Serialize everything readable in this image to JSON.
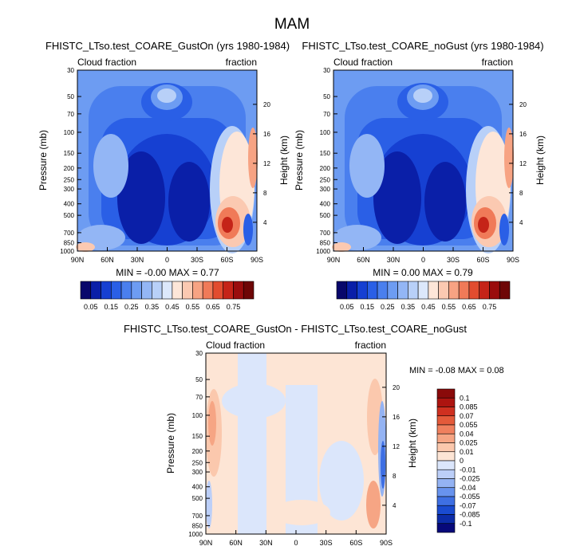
{
  "figure": {
    "title": "MAM"
  },
  "colors": {
    "seq_scale": [
      "#08076b",
      "#0a1fa8",
      "#1640d2",
      "#2a5fe6",
      "#4a7fee",
      "#6d9cf2",
      "#93b6f5",
      "#b8d0f8",
      "#dce8fb",
      "#fde6d8",
      "#fbc9b1",
      "#f7a383",
      "#f07a58",
      "#e24c2f",
      "#c52418",
      "#9a0d0d",
      "#6e0606"
    ],
    "diff_scale": [
      "#07097a",
      "#0c2ca8",
      "#1a4bd0",
      "#3e6fe3",
      "#6893ee",
      "#94b3f3",
      "#bccff8",
      "#dbe6fb",
      "#fde5d5",
      "#fbc8ad",
      "#f6a584",
      "#f0805e",
      "#e45a3a",
      "#cf3020",
      "#ad1410",
      "#8a0a0a"
    ]
  },
  "chart_data": [
    {
      "type": "heatmap",
      "title": "FHISTC_LTso.test_COARE_GustOn (yrs 1980-1984)",
      "left_label": "Cloud fraction",
      "right_label": "fraction",
      "ylabel": "Pressure (mb)",
      "ylabel_right": "Height (km)",
      "x_ticks": [
        "90N",
        "60N",
        "30N",
        "0",
        "30S",
        "60S",
        "90S"
      ],
      "y_ticks": [
        "30",
        "50",
        "70",
        "100",
        "150",
        "200",
        "250",
        "300",
        "400",
        "500",
        "700",
        "850",
        "1000"
      ],
      "y2_ticks": [
        "20",
        "16",
        "12",
        "8",
        "4"
      ],
      "stats": "MIN =  -0.00   MAX =  0.77",
      "colorbar_labels": [
        "0.05",
        "0.15",
        "0.25",
        "0.35",
        "0.45",
        "0.55",
        "0.65",
        "0.75"
      ],
      "colorbar_levels": [
        0.05,
        0.1,
        0.15,
        0.2,
        0.25,
        0.3,
        0.35,
        0.4,
        0.45,
        0.5,
        0.55,
        0.6,
        0.65,
        0.7,
        0.75
      ],
      "min": -0.0,
      "max": 0.77
    },
    {
      "type": "heatmap",
      "title": "FHISTC_LTso.test_COARE_noGust (yrs 1980-1984)",
      "left_label": "Cloud fraction",
      "right_label": "fraction",
      "ylabel": "Pressure (mb)",
      "ylabel_right": "Height (km)",
      "x_ticks": [
        "90N",
        "60N",
        "30N",
        "0",
        "30S",
        "60S",
        "90S"
      ],
      "y_ticks": [
        "30",
        "50",
        "70",
        "100",
        "150",
        "200",
        "250",
        "300",
        "400",
        "500",
        "700",
        "850",
        "1000"
      ],
      "y2_ticks": [
        "20",
        "16",
        "12",
        "8",
        "4"
      ],
      "stats": "MIN =  0.00   MAX =  0.79",
      "colorbar_labels": [
        "0.05",
        "0.15",
        "0.25",
        "0.35",
        "0.45",
        "0.55",
        "0.65",
        "0.75"
      ],
      "colorbar_levels": [
        0.05,
        0.1,
        0.15,
        0.2,
        0.25,
        0.3,
        0.35,
        0.4,
        0.45,
        0.5,
        0.55,
        0.6,
        0.65,
        0.7,
        0.75
      ],
      "min": 0.0,
      "max": 0.79
    },
    {
      "type": "heatmap",
      "title": "FHISTC_LTso.test_COARE_GustOn - FHISTC_LTso.test_COARE_noGust",
      "left_label": "Cloud fraction",
      "right_label": "fraction",
      "ylabel": "Pressure (mb)",
      "ylabel_right": "Height (km)",
      "x_ticks": [
        "90N",
        "60N",
        "30N",
        "0",
        "30S",
        "60S",
        "90S"
      ],
      "y_ticks": [
        "30",
        "50",
        "70",
        "100",
        "150",
        "200",
        "250",
        "300",
        "400",
        "500",
        "700",
        "850",
        "1000"
      ],
      "y2_ticks": [
        "20",
        "16",
        "12",
        "8",
        "4"
      ],
      "stats": "MIN =  -0.08   MAX =  0.08",
      "colorbar_labels": [
        "0.1",
        "0.085",
        "0.07",
        "0.055",
        "0.04",
        "0.025",
        "0.01",
        "0",
        "-0.01",
        "-0.025",
        "-0.04",
        "-0.055",
        "-0.07",
        "-0.085",
        "-0.1"
      ],
      "colorbar_levels": [
        0.1,
        0.085,
        0.07,
        0.055,
        0.04,
        0.025,
        0.01,
        0,
        -0.01,
        -0.025,
        -0.04,
        -0.055,
        -0.07,
        -0.085,
        -0.1
      ],
      "min": -0.08,
      "max": 0.08
    }
  ]
}
